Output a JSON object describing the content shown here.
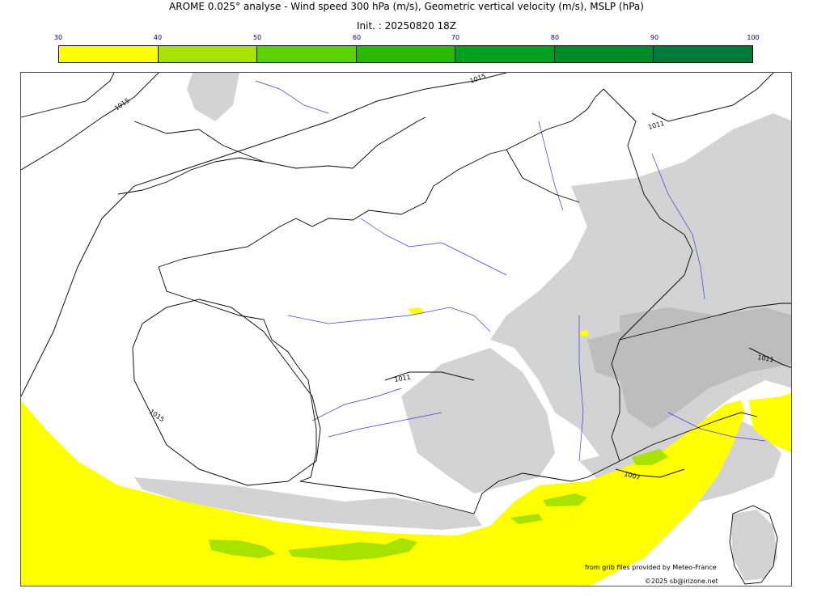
{
  "header": {
    "title": "AROME 0.025° analyse - Wind speed 300 hPa (m/s), Geometric vertical velocity (m/s), MSLP (hPa)",
    "subtitle": "Init. : 20250820 18Z"
  },
  "colorbar": {
    "ticks": [
      "30",
      "40",
      "50",
      "60",
      "70",
      "80",
      "90",
      "100"
    ],
    "colors": [
      "#ffff00",
      "#a8e200",
      "#5cd000",
      "#2ab800",
      "#00a020",
      "#008a2a",
      "#007a3a"
    ]
  },
  "map": {
    "isobar_labels": [
      "1015",
      "1015",
      "1011",
      "1011",
      "1015",
      "1007",
      "1011"
    ],
    "colors": {
      "wind_30_40": "#ffff00",
      "wind_40_50": "#a8e200",
      "vertical_velocity_shading": "#d3d3d3",
      "vertical_velocity_dark": "#bdbdbd",
      "rivers": "#3b3bdc",
      "coast": "#000000"
    }
  },
  "footer": {
    "credit_source": "from grib files provided by Meteo-France",
    "credit_copyright": "©2025 sb@irizone.net"
  }
}
